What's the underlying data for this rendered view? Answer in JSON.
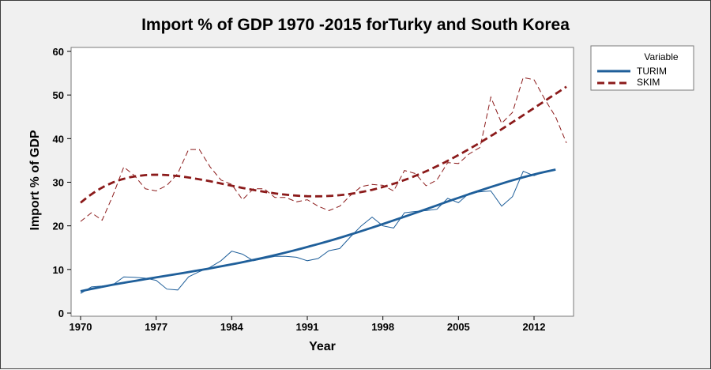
{
  "chart_data": {
    "type": "line",
    "title": "Import % of GDP 1970 -2015 forTurky and South Korea",
    "xlabel": "Year",
    "ylabel": "Import % of GDP",
    "xlim": [
      1970,
      2016
    ],
    "ylim": [
      0,
      60
    ],
    "x_ticks": [
      1970,
      1977,
      1984,
      1991,
      1998,
      2005,
      2012
    ],
    "y_ticks": [
      0,
      10,
      20,
      30,
      40,
      50,
      60
    ],
    "grid": false,
    "legend": {
      "title": "Variable",
      "placement": "right",
      "entries": [
        "TURIM",
        "SKIM"
      ]
    },
    "colors": {
      "TURIM": "#1f5f9a",
      "SKIM": "#8b1a1a"
    },
    "x": [
      1970,
      1971,
      1972,
      1973,
      1974,
      1975,
      1976,
      1977,
      1978,
      1979,
      1980,
      1981,
      1982,
      1983,
      1984,
      1985,
      1986,
      1987,
      1988,
      1989,
      1990,
      1991,
      1992,
      1993,
      1994,
      1995,
      1996,
      1997,
      1998,
      1999,
      2000,
      2001,
      2002,
      2003,
      2004,
      2005,
      2006,
      2007,
      2008,
      2009,
      2010,
      2011,
      2012,
      2013,
      2014,
      2015
    ],
    "series": [
      {
        "name": "TURIM",
        "values": [
          4.5,
          6.0,
          6.2,
          6.5,
          8.3,
          8.2,
          8.0,
          7.5,
          5.5,
          5.3,
          8.3,
          9.5,
          10.5,
          12.0,
          14.2,
          13.5,
          12.0,
          12.5,
          13.0,
          13.0,
          12.8,
          12.0,
          12.5,
          14.3,
          14.8,
          17.5,
          20.0,
          22.0,
          20.0,
          19.5,
          23.0,
          23.3,
          23.5,
          23.8,
          26.3,
          25.3,
          27.5,
          27.8,
          28.0,
          24.5,
          26.7,
          32.5,
          31.5,
          32.5,
          null,
          null
        ],
        "fit": {
          "kind": "quadratic",
          "points": [
            [
              1970,
              5.0
            ],
            [
              1980,
              9.4
            ],
            [
              1990,
              14.5
            ],
            [
              2000,
              22.1
            ],
            [
              2014,
              32.9
            ]
          ]
        }
      },
      {
        "name": "SKIM",
        "values": [
          21.0,
          23.0,
          21.3,
          27.0,
          33.5,
          31.5,
          28.5,
          28.0,
          29.3,
          32.0,
          37.5,
          37.5,
          33.5,
          30.5,
          29.5,
          26.0,
          28.5,
          28.5,
          26.5,
          26.5,
          25.5,
          26.0,
          24.5,
          23.5,
          24.5,
          27.0,
          29.0,
          29.5,
          29.3,
          28.0,
          32.7,
          32.0,
          29.2,
          30.5,
          34.5,
          34.3,
          36.5,
          38.0,
          49.5,
          43.5,
          46.0,
          54.0,
          53.5,
          49.0,
          45.0,
          39.0
        ],
        "fit": {
          "kind": "cubic",
          "points": [
            [
              1970,
              25.3
            ],
            [
              1984,
              29.2
            ],
            [
              1991,
              26.8
            ],
            [
              2000,
              30.5
            ],
            [
              2008,
              40.6
            ],
            [
              2015,
              51.9
            ]
          ]
        }
      }
    ]
  }
}
